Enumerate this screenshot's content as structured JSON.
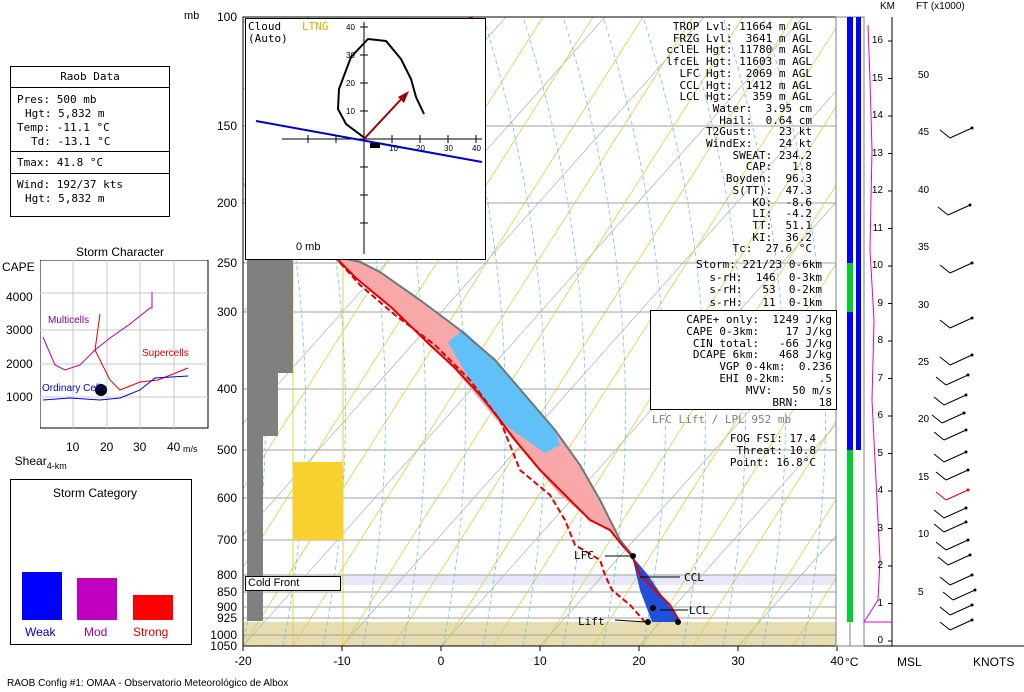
{
  "raob": {
    "title": "Raob Data",
    "pres": "Pres: 500 mb",
    "hgt": "Hgt: 5,832 m",
    "temp": "Temp: -11.1 °C",
    "td": "Td: -13.1 °C",
    "tmax": "Tmax: 41.8 °C",
    "wind": "Wind: 192/37 kts",
    "wind_hgt": "Hgt: 5,832 m"
  },
  "indices": [
    "TROP Lvl: 11664 m AGL",
    "FRZG Lvl:  3641 m AGL",
    "cclEL Hgt: 11780 m AGL",
    "lfcEL Hgt: 11603 m AGL",
    "LFC Hgt:  2069 m AGL",
    "CCL Hgt:  1412 m AGL",
    "LCL Hgt:   359 m AGL",
    "Water:  3.95 cm",
    "Hail:  0.64 cm",
    "T2Gust:    23 kt",
    "WindEx:    24 kt",
    "SWEAT: 234.2",
    "CAP:   1.8",
    "Boyden:  96.3",
    "S(TT):  47.3",
    "KO:  -8.6",
    "LI:  -4.2",
    "TT:  51.1",
    "KI:  36.2",
    "Tc:  27.6 °C"
  ],
  "storm": [
    "Storm: 221/23 0-6km",
    "s-rH:  146  0-3km",
    "s-rH:   53  0-2km",
    "s-rH:   11  0-1km"
  ],
  "cape": [
    "CAPE+ only:  1249 J/kg",
    "CAPE 0-3km:    17 J/kg",
    "CIN total:   -66 J/kg",
    "DCAPE 6km:   468 J/kg",
    "VGP 0-4km:  0.236",
    "EHI 0-2km:     .5",
    "MVV:   50 m/s",
    "BRN:   18"
  ],
  "lfc_lift": "LFC Lift / LPL 952 mb",
  "fog": [
    "FOG FSI: 17.4",
    "Threat: 10.8",
    "Point: 16.8°C"
  ],
  "hodo": {
    "title": "Cloud",
    "sub": "(Auto)",
    "ltng": "LTNG",
    "ticks": [
      "10",
      "20",
      "30",
      "40"
    ]
  },
  "storm_character": {
    "title": "Storm Character",
    "cape_label": "CAPE",
    "cape_ticks": [
      "4000",
      "3000",
      "2000",
      "1000"
    ],
    "shear_label": "Shear",
    "shear_sub": "4-km",
    "shear_ticks": [
      "10",
      "20",
      "30",
      "40"
    ],
    "unit": "m/s",
    "multicells": "Multicells",
    "supercells": "Supercells",
    "ordinary": "Ordinary Cells"
  },
  "storm_category": {
    "title": "Storm Category",
    "labels": [
      "Weak",
      "Mod",
      "Strong"
    ],
    "colors": [
      "#0000ff",
      "#c000c0",
      "#ff0000"
    ]
  },
  "skewt": {
    "p_unit": "mb",
    "p_labels": [
      "100",
      "150",
      "200",
      "250",
      "300",
      "400",
      "500",
      "600",
      "700",
      "800",
      "850",
      "900",
      "925",
      "1000",
      "1050"
    ],
    "t_labels": [
      "-20",
      "-10",
      "0",
      "10",
      "20",
      "30",
      "40"
    ],
    "t_unit": "°C",
    "cold_front": "Cold Front",
    "lfc": "LFC",
    "ccl": "CCL",
    "lcl": "LCL",
    "lift": "Lift",
    "zero_mb": "0 mb"
  },
  "height": {
    "km_label": "KM",
    "ft_label": "FT (x1000)",
    "km_ticks": [
      "16",
      "15",
      "14",
      "13",
      "12",
      "11",
      "10",
      "9",
      "8",
      "7",
      "6",
      "5",
      "4",
      "3",
      "2",
      "1",
      "0"
    ],
    "ft_ticks": [
      "50",
      "45",
      "40",
      "35",
      "30",
      "25",
      "20",
      "15",
      "10",
      "5"
    ],
    "msl": "MSL",
    "knots": "KNOTS"
  },
  "footer": "RAOB Config #1: OMAA - Observatorio Meteorológico de Albox",
  "colors": {
    "temp": "#e00000",
    "cape": "#f8a8a8",
    "blue_band": "#60c0f8",
    "ground": "#e8ddb0",
    "yellow": "#f8d030",
    "dry_adiabat": "#c8d848",
    "moist_adiabat": "#60c8e0"
  },
  "chart_data": {
    "type": "line",
    "title": "",
    "xlabel": "°C",
    "ylabel": "mb",
    "xlim": [
      -20,
      40
    ],
    "ylim": [
      1050,
      100
    ],
    "series": [],
    "x": [],
    "values": []
  }
}
